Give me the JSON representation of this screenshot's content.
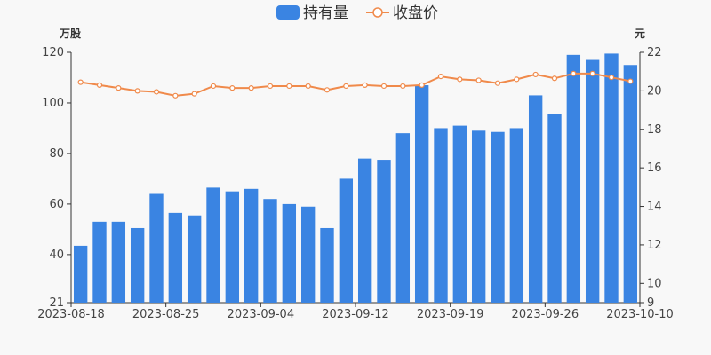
{
  "chart_data": {
    "type": "bar+line",
    "legend": [
      {
        "name": "持有量",
        "kind": "bar",
        "color": "#3a84e2"
      },
      {
        "name": "收盘价",
        "kind": "line",
        "color": "#f08a4b"
      }
    ],
    "left_unit": "万股",
    "right_unit": "元",
    "left_axis": {
      "min": 21,
      "max": 120,
      "ticks": [
        21,
        40,
        60,
        80,
        100,
        120
      ]
    },
    "right_axis": {
      "min": 9,
      "max": 22,
      "ticks": [
        9,
        10,
        12,
        14,
        16,
        18,
        20,
        22
      ]
    },
    "x_tick_labels": [
      "2023-08-18",
      "2023-08-25",
      "2023-09-04",
      "2023-09-12",
      "2023-09-19",
      "2023-09-26",
      "2023-10-10"
    ],
    "x_tick_indices": [
      0,
      5,
      10,
      15,
      20,
      25,
      30
    ],
    "holdings": [
      43.5,
      53,
      53,
      50.5,
      64,
      56.5,
      55.5,
      66.5,
      65,
      66,
      62,
      60,
      59,
      50.5,
      70,
      78,
      77.5,
      88,
      107,
      90,
      91,
      89,
      88.5,
      90,
      103,
      95.5,
      119,
      117,
      119.5,
      115
    ],
    "close": [
      20.45,
      20.3,
      20.15,
      20.0,
      19.95,
      19.75,
      19.85,
      20.25,
      20.15,
      20.15,
      20.25,
      20.25,
      20.25,
      20.05,
      20.25,
      20.3,
      20.25,
      20.25,
      20.3,
      20.75,
      20.6,
      20.55,
      20.4,
      20.6,
      20.85,
      20.65,
      20.9,
      20.9,
      20.7,
      20.5
    ]
  }
}
